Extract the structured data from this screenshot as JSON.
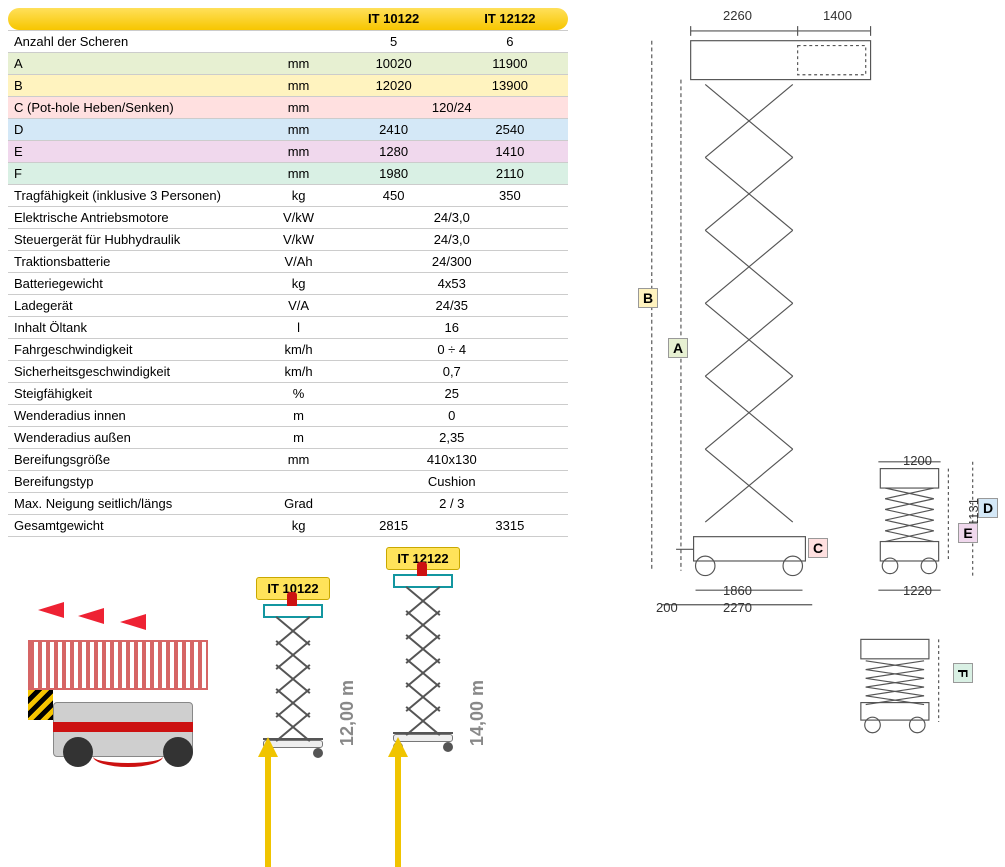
{
  "table": {
    "headers": {
      "col1": "IT 10122",
      "col2": "IT 12122"
    },
    "rows": [
      {
        "label": "Anzahl der Scheren",
        "unit": "",
        "v1": "5",
        "v2": "6",
        "cls": ""
      },
      {
        "label": "A",
        "unit": "mm",
        "v1": "10020",
        "v2": "11900",
        "cls": "row-A"
      },
      {
        "label": "B",
        "unit": "mm",
        "v1": "12020",
        "v2": "13900",
        "cls": "row-B"
      },
      {
        "label": "C (Pot-hole Heben/Senken)",
        "unit": "mm",
        "merged": "120/24",
        "cls": "row-C"
      },
      {
        "label": "D",
        "unit": "mm",
        "v1": "2410",
        "v2": "2540",
        "cls": "row-D"
      },
      {
        "label": "E",
        "unit": "mm",
        "v1": "1280",
        "v2": "1410",
        "cls": "row-E"
      },
      {
        "label": "F",
        "unit": "mm",
        "v1": "1980",
        "v2": "2110",
        "cls": "row-F"
      },
      {
        "label": "Tragfähigkeit (inklusive 3 Personen)",
        "unit": "kg",
        "v1": "450",
        "v2": "350",
        "cls": ""
      },
      {
        "label": "Elektrische Antriebsmotore",
        "unit": "V/kW",
        "merged": "24/3,0",
        "cls": ""
      },
      {
        "label": "Steuergerät für Hubhydraulik",
        "unit": "V/kW",
        "merged": "24/3,0",
        "cls": ""
      },
      {
        "label": "Traktionsbatterie",
        "unit": "V/Ah",
        "merged": "24/300",
        "cls": ""
      },
      {
        "label": "Batteriegewicht",
        "unit": "kg",
        "merged": "4x53",
        "cls": ""
      },
      {
        "label": "Ladegerät",
        "unit": "V/A",
        "merged": "24/35",
        "cls": ""
      },
      {
        "label": "Inhalt Öltank",
        "unit": "l",
        "merged": "16",
        "cls": ""
      },
      {
        "label": "Fahrgeschwindigkeit",
        "unit": "km/h",
        "merged": "0 ÷ 4",
        "cls": ""
      },
      {
        "label": "Sicherheitsgeschwindigkeit",
        "unit": "km/h",
        "merged": "0,7",
        "cls": ""
      },
      {
        "label": "Steigfähigkeit",
        "unit": "%",
        "merged": "25",
        "cls": ""
      },
      {
        "label": "Wenderadius innen",
        "unit": "m",
        "merged": "0",
        "cls": ""
      },
      {
        "label": "Wenderadius außen",
        "unit": "m",
        "merged": "2,35",
        "cls": ""
      },
      {
        "label": "Bereifungsgröße",
        "unit": "mm",
        "merged": "410x130",
        "cls": ""
      },
      {
        "label": "Bereifungstyp",
        "unit": "",
        "merged": "Cushion",
        "cls": ""
      },
      {
        "label": "Max. Neigung seitlich/längs",
        "unit": "Grad",
        "merged": "2 / 3",
        "cls": ""
      },
      {
        "label": "Gesamtgewicht",
        "unit": "kg",
        "v1": "2815",
        "v2": "3315",
        "cls": ""
      }
    ]
  },
  "models": {
    "m1": {
      "name": "IT 10122",
      "height": "12,00 m",
      "scissor_segments": 5
    },
    "m2": {
      "name": "IT 12122",
      "height": "14,00 m",
      "scissor_segments": 6
    }
  },
  "drawing": {
    "top_dim_platform": "2260",
    "top_dim_extension": "1400",
    "side_dim_width": "1200",
    "side_dim_height_inner": "1131",
    "base_dim_inner": "1860",
    "base_dim_outer": "2270",
    "base_dim_offset": "200",
    "side_dim_base": "1220",
    "letters": {
      "A": "A",
      "B": "B",
      "C": "C",
      "D": "D",
      "E": "E",
      "F": "F"
    },
    "scissor_segments_main": 6,
    "colors": {
      "line": "#555555",
      "dim": "#333333"
    }
  }
}
